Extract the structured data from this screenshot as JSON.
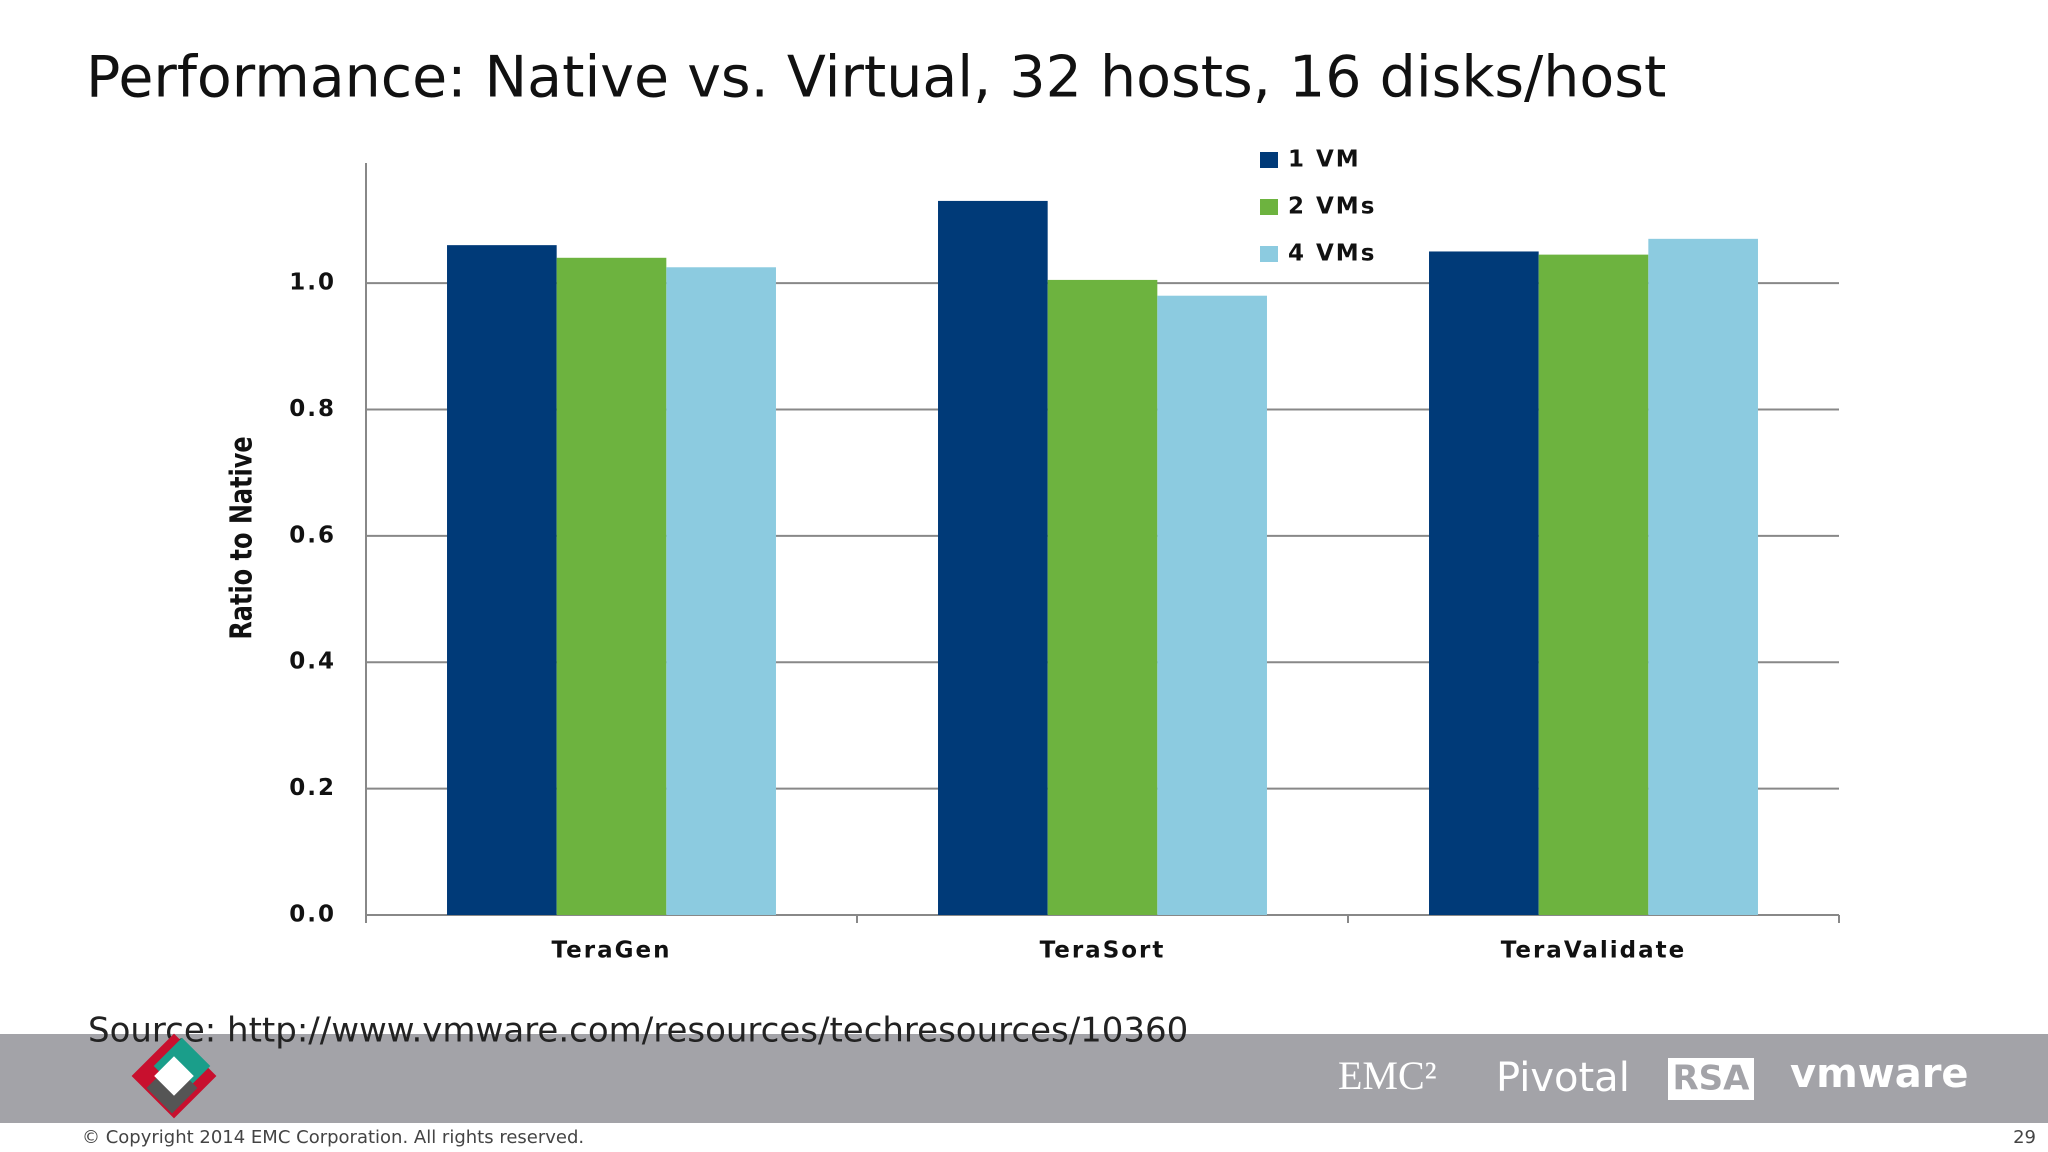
{
  "title": "Performance: Native vs. Virtual, 32 hosts, 16 disks/host",
  "chart_data": {
    "type": "bar",
    "categories": [
      "TeraGen",
      "TeraSort",
      "TeraValidate"
    ],
    "series": [
      {
        "name": "1 VM",
        "color": "#003a78",
        "values": [
          1.06,
          1.13,
          1.05
        ]
      },
      {
        "name": "2 VMs",
        "color": "#6db33f",
        "values": [
          1.04,
          1.005,
          1.045
        ]
      },
      {
        "name": "4 VMs",
        "color": "#8ccbe0",
        "values": [
          1.025,
          0.98,
          1.07
        ]
      }
    ],
    "ylabel": "Ratio to Native",
    "ylim": [
      0,
      1.19
    ],
    "yticks": [
      {
        "value": 0,
        "label": "0.0"
      },
      0.2,
      0.4,
      0.6,
      0.8,
      {
        "value": 1,
        "label": "1.0"
      }
    ],
    "grid": true,
    "legend": "top-right"
  },
  "source": "Source: http://www.vmware.com/resources/techresources/10360",
  "footer": {
    "logos": [
      "EMC²",
      "Pivotal",
      "RSA",
      "vmware"
    ],
    "copyright": "© Copyright 2014 EMC Corporation. All rights reserved.",
    "page": "29"
  }
}
